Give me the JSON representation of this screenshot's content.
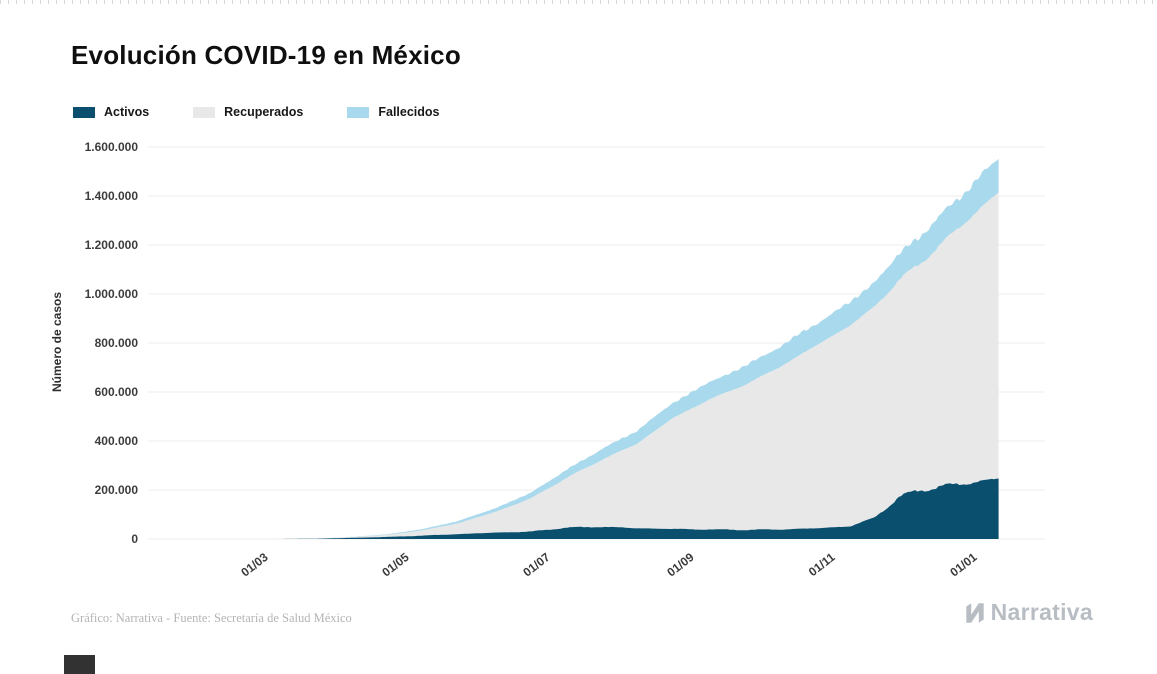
{
  "page": {
    "title": "Evolución COVID-19 en México",
    "footer_credit": "Gráfico: Narrativa - Fuente: Secretaría de Salud México",
    "brand": "Narrativa"
  },
  "chart_data": {
    "type": "area",
    "stacked": true,
    "title": "Evolución COVID-19 en México",
    "xlabel": "",
    "ylabel": "Número de casos",
    "ylim": [
      0,
      1600000
    ],
    "grid": "horizontal",
    "legend_position": "top-left",
    "y_ticks": [
      {
        "value": 0,
        "label": "0"
      },
      {
        "value": 200000,
        "label": "200.000"
      },
      {
        "value": 400000,
        "label": "400.000"
      },
      {
        "value": 600000,
        "label": "600.000"
      },
      {
        "value": 800000,
        "label": "800.000"
      },
      {
        "value": 1000000,
        "label": "1.000.000"
      },
      {
        "value": 1200000,
        "label": "1.200.000"
      },
      {
        "value": 1400000,
        "label": "1.400.000"
      },
      {
        "value": 1600000,
        "label": "1.600.000"
      }
    ],
    "x_ticks": [
      {
        "date": "2020-03-01",
        "label": "01/03"
      },
      {
        "date": "2020-05-01",
        "label": "01/05"
      },
      {
        "date": "2020-07-01",
        "label": "01/07"
      },
      {
        "date": "2020-09-01",
        "label": "01/09"
      },
      {
        "date": "2020-11-01",
        "label": "01/11"
      },
      {
        "date": "2021-01-01",
        "label": "01/01"
      }
    ],
    "x": [
      "2020-02-25",
      "2020-03-10",
      "2020-03-25",
      "2020-04-10",
      "2020-04-25",
      "2020-05-10",
      "2020-05-25",
      "2020-06-10",
      "2020-06-25",
      "2020-07-10",
      "2020-07-25",
      "2020-08-10",
      "2020-08-25",
      "2020-09-10",
      "2020-09-25",
      "2020-10-10",
      "2020-10-25",
      "2020-11-10",
      "2020-11-20",
      "2020-12-01",
      "2020-12-10",
      "2020-12-20",
      "2021-01-01",
      "2021-01-13"
    ],
    "series": [
      {
        "name": "Activos",
        "color": "#0b4f6e",
        "values": [
          10,
          200,
          1200,
          5000,
          8500,
          14000,
          20000,
          26000,
          30000,
          46000,
          50000,
          44000,
          41000,
          39000,
          37000,
          39000,
          43000,
          52000,
          85000,
          170000,
          200000,
          215000,
          230000,
          248000
        ]
      },
      {
        "name": "Recuperados",
        "color": "#e8e8e8",
        "values": [
          0,
          50,
          600,
          3500,
          9000,
          22000,
          45000,
          85000,
          135000,
          200000,
          270000,
          345000,
          450000,
          530000,
          590000,
          660000,
          740000,
          820000,
          860000,
          885000,
          925000,
          995000,
          1085000,
          1168000
        ]
      },
      {
        "name": "Fallecidos",
        "color": "#a9d9ec",
        "values": [
          0,
          5,
          100,
          900,
          2500,
          5500,
          9000,
          15000,
          23000,
          33000,
          43000,
          53000,
          62000,
          70000,
          76000,
          83000,
          88000,
          95000,
          100000,
          106000,
          112000,
          119000,
          127000,
          138000
        ]
      }
    ]
  }
}
